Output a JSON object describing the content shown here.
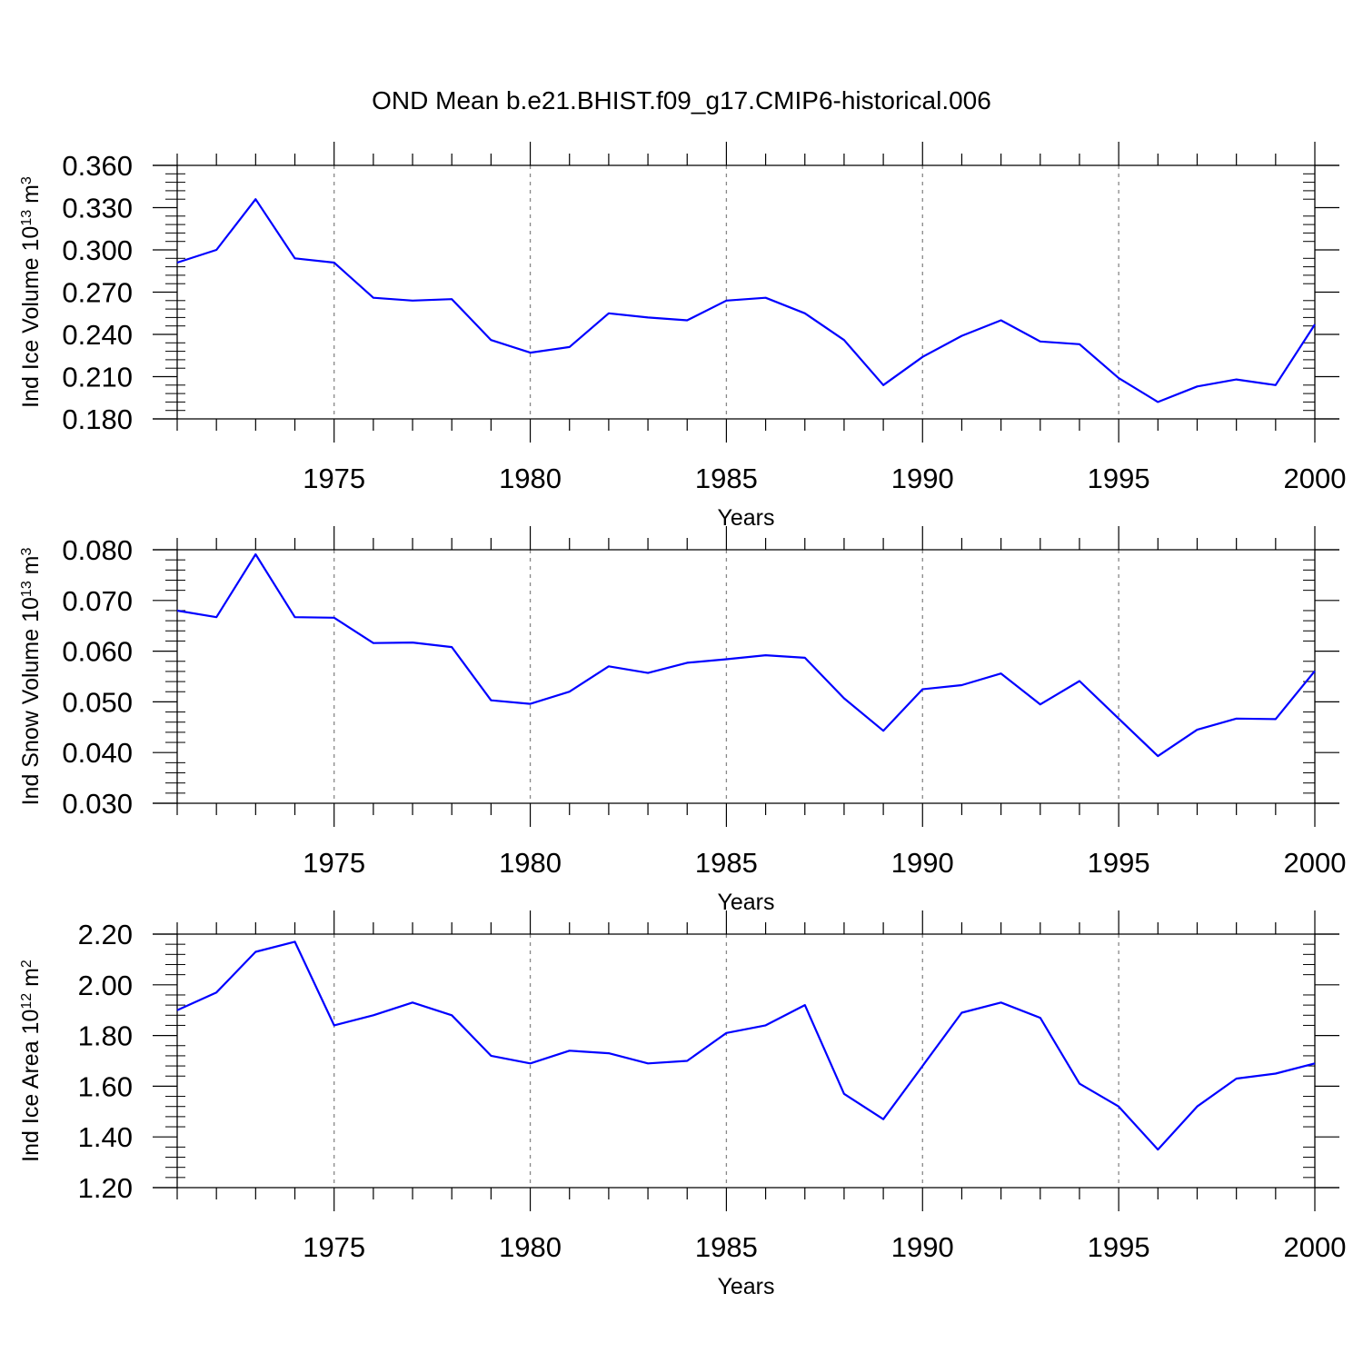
{
  "title": "OND Mean b.e21.BHIST.f09_g17.CMIP6-historical.006",
  "colors": {
    "series": "#0000ff",
    "axis": "#000000",
    "grid": "#888888"
  },
  "chart_data": [
    {
      "type": "line",
      "ylabel": {
        "text": "Ind Ice Volume 10",
        "sup": "13",
        "unit": " m",
        "unit_sup": "3"
      },
      "xlabel": "Years",
      "xlim": [
        1971,
        2000
      ],
      "ylim": [
        0.18,
        0.36
      ],
      "yticks": [
        "0.180",
        "0.210",
        "0.240",
        "0.270",
        "0.300",
        "0.330",
        "0.360"
      ],
      "xticks": [
        "1975",
        "1980",
        "1985",
        "1990",
        "1995",
        "2000"
      ],
      "grid": "vertical dashed at major x ticks",
      "x": [
        1971,
        1972,
        1973,
        1974,
        1975,
        1976,
        1977,
        1978,
        1979,
        1980,
        1981,
        1982,
        1983,
        1984,
        1985,
        1986,
        1987,
        1988,
        1989,
        1990,
        1991,
        1992,
        1993,
        1994,
        1995,
        1996,
        1997,
        1998,
        1999,
        2000
      ],
      "values": [
        0.291,
        0.3,
        0.336,
        0.294,
        0.291,
        0.266,
        0.264,
        0.265,
        0.236,
        0.227,
        0.231,
        0.255,
        0.252,
        0.25,
        0.264,
        0.266,
        0.255,
        0.236,
        0.204,
        0.224,
        0.239,
        0.25,
        0.235,
        0.233,
        0.209,
        0.192,
        0.203,
        0.208,
        0.204,
        0.247
      ]
    },
    {
      "type": "line",
      "ylabel": {
        "text": "Ind Snow Volume 10",
        "sup": "13",
        "unit": " m",
        "unit_sup": "3"
      },
      "xlabel": "Years",
      "xlim": [
        1971,
        2000
      ],
      "ylim": [
        0.03,
        0.08
      ],
      "yticks": [
        "0.030",
        "0.040",
        "0.050",
        "0.060",
        "0.070",
        "0.080"
      ],
      "xticks": [
        "1975",
        "1980",
        "1985",
        "1990",
        "1995",
        "2000"
      ],
      "grid": "vertical dashed at major x ticks",
      "x": [
        1971,
        1972,
        1973,
        1974,
        1975,
        1976,
        1977,
        1978,
        1979,
        1980,
        1981,
        1982,
        1983,
        1984,
        1985,
        1986,
        1987,
        1988,
        1989,
        1990,
        1991,
        1992,
        1993,
        1994,
        1995,
        1996,
        1997,
        1998,
        1999,
        2000
      ],
      "values": [
        0.068,
        0.0667,
        0.0791,
        0.0667,
        0.0666,
        0.0616,
        0.0617,
        0.0608,
        0.0503,
        0.0496,
        0.052,
        0.057,
        0.0557,
        0.0577,
        0.0584,
        0.0592,
        0.0587,
        0.0507,
        0.0443,
        0.0525,
        0.0533,
        0.0556,
        0.0495,
        0.0541,
        0.0467,
        0.0393,
        0.0445,
        0.0467,
        0.0466,
        0.0561
      ]
    },
    {
      "type": "line",
      "ylabel": {
        "text": "Ind Ice Area 10",
        "sup": "12",
        "unit": " m",
        "unit_sup": "2"
      },
      "xlabel": "Years",
      "xlim": [
        1971,
        2000
      ],
      "ylim": [
        1.2,
        2.2
      ],
      "yticks": [
        "1.20",
        "1.40",
        "1.60",
        "1.80",
        "2.00",
        "2.20"
      ],
      "xticks": [
        "1975",
        "1980",
        "1985",
        "1990",
        "1995",
        "2000"
      ],
      "grid": "vertical dashed at major x ticks",
      "x": [
        1971,
        1972,
        1973,
        1974,
        1975,
        1976,
        1977,
        1978,
        1979,
        1980,
        1981,
        1982,
        1983,
        1984,
        1985,
        1986,
        1987,
        1988,
        1989,
        1990,
        1991,
        1992,
        1993,
        1994,
        1995,
        1996,
        1997,
        1998,
        1999,
        2000
      ],
      "values": [
        1.9,
        1.97,
        2.13,
        2.17,
        1.84,
        1.88,
        1.93,
        1.88,
        1.72,
        1.69,
        1.74,
        1.73,
        1.69,
        1.7,
        1.81,
        1.84,
        1.92,
        1.57,
        1.47,
        1.68,
        1.89,
        1.93,
        1.87,
        1.61,
        1.52,
        1.35,
        1.52,
        1.63,
        1.65,
        1.69
      ]
    }
  ]
}
